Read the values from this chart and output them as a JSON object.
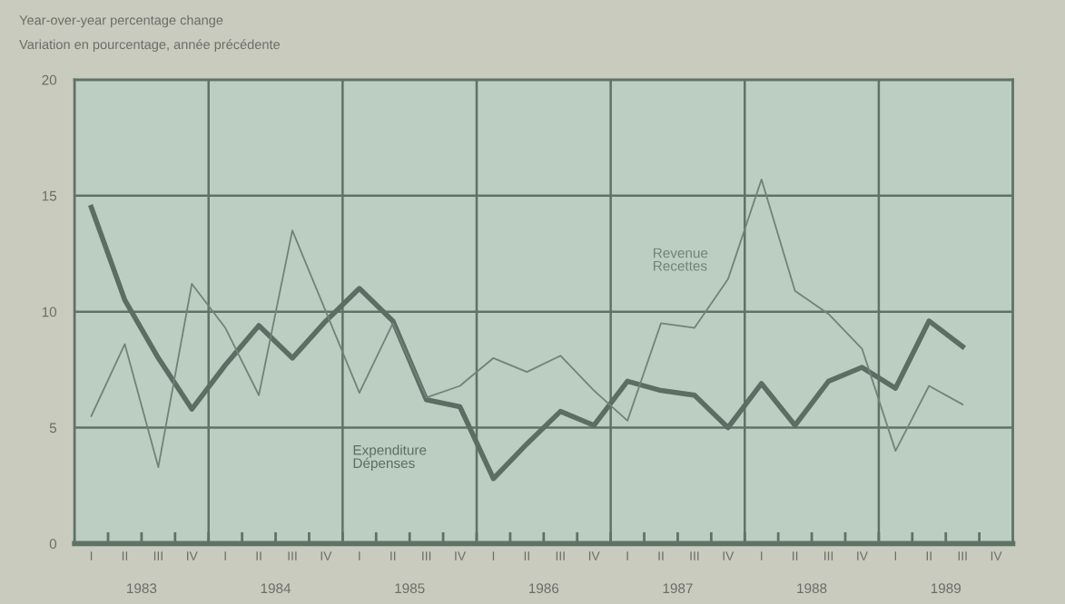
{
  "chart_data": {
    "type": "line",
    "title": "Year-over-year percentage change",
    "subtitle": "Variation en pourcentage, année précédente",
    "categories": [
      "I",
      "II",
      "III",
      "IV",
      "I",
      "II",
      "III",
      "IV",
      "I",
      "II",
      "III",
      "IV",
      "I",
      "II",
      "III",
      "IV",
      "I",
      "II",
      "III",
      "IV",
      "I",
      "II",
      "III",
      "IV",
      "I",
      "II",
      "III",
      "IV"
    ],
    "series": [
      {
        "name": "Expenditure\nDépenses",
        "color": "#5a6e63",
        "values": [
          14.5,
          10.5,
          8.0,
          5.8,
          7.7,
          9.4,
          8.0,
          9.6,
          11.0,
          9.6,
          6.2,
          5.9,
          2.8,
          4.3,
          5.7,
          5.1,
          7.0,
          6.6,
          6.4,
          5.0,
          6.9,
          5.1,
          7.0,
          7.6,
          6.7,
          9.6,
          8.5,
          null
        ]
      },
      {
        "name": "Revenue\nRecettes",
        "color": "#6f8479",
        "values": [
          5.5,
          8.6,
          3.3,
          11.2,
          9.3,
          6.4,
          13.5,
          10.0,
          6.5,
          9.5,
          6.3,
          6.8,
          8.0,
          7.4,
          8.1,
          6.6,
          5.3,
          9.5,
          9.3,
          11.4,
          15.7,
          10.9,
          9.9,
          8.4,
          4.0,
          6.8,
          6.0,
          null
        ]
      }
    ],
    "ylim": [
      0,
      20
    ],
    "yticks": [
      0,
      5,
      10,
      15,
      20
    ],
    "grid": "y",
    "annotations": [
      "1983",
      "1984",
      "1985",
      "1986",
      "1987",
      "1988",
      "1989"
    ]
  }
}
